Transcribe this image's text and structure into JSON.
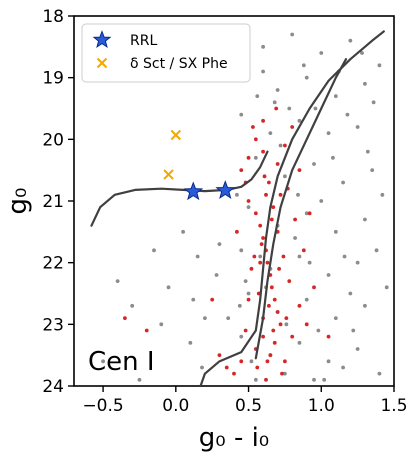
{
  "chart_data": {
    "type": "scatter",
    "title": "",
    "xlabel": "g₀ - i₀",
    "ylabel": "g₀",
    "xlim": [
      -0.7,
      1.5
    ],
    "ylim": [
      24,
      18
    ],
    "y_inverted": true,
    "grid": false,
    "legend_position": "top-left",
    "annotation": "Cen I",
    "x_ticks": [
      {
        "value": -0.5,
        "label": "−0.5"
      },
      {
        "value": 0.0,
        "label": "0.0"
      },
      {
        "value": 0.5,
        "label": "0.5"
      },
      {
        "value": 1.0,
        "label": "1.0"
      },
      {
        "value": 1.5,
        "label": "1.5"
      }
    ],
    "y_ticks": [
      {
        "value": 18,
        "label": "18"
      },
      {
        "value": 19,
        "label": "19"
      },
      {
        "value": 20,
        "label": "20"
      },
      {
        "value": 21,
        "label": "21"
      },
      {
        "value": 22,
        "label": "22"
      },
      {
        "value": 23,
        "label": "23"
      },
      {
        "value": 24,
        "label": "24"
      }
    ],
    "legend": [
      {
        "label": "RRL",
        "marker": "star",
        "color": "#2a5bd7"
      },
      {
        "label": "δ Sct / SX Phe",
        "marker": "x",
        "color": "#f2a900"
      }
    ],
    "series": [
      {
        "name": "RRL",
        "marker": "star",
        "color": "#2a5bd7",
        "points": [
          [
            0.12,
            20.85
          ],
          [
            0.34,
            20.83
          ]
        ]
      },
      {
        "name": "δ Sct / SX Phe",
        "marker": "x",
        "color": "#f2a900",
        "points": [
          [
            0.0,
            19.93
          ],
          [
            -0.05,
            20.57
          ]
        ]
      },
      {
        "name": "members",
        "marker": "dot",
        "color": "#d62728",
        "points": [
          [
            0.45,
            20.5
          ],
          [
            0.5,
            20.3
          ],
          [
            0.55,
            20.0
          ],
          [
            0.6,
            19.7
          ],
          [
            0.62,
            20.9
          ],
          [
            0.5,
            21.0
          ],
          [
            0.55,
            21.2
          ],
          [
            0.58,
            21.4
          ],
          [
            0.6,
            21.6
          ],
          [
            0.62,
            21.8
          ],
          [
            0.63,
            22.0
          ],
          [
            0.65,
            22.2
          ],
          [
            0.66,
            22.4
          ],
          [
            0.68,
            22.6
          ],
          [
            0.7,
            22.8
          ],
          [
            0.72,
            23.0
          ],
          [
            0.6,
            23.2
          ],
          [
            0.55,
            23.4
          ],
          [
            0.65,
            23.5
          ],
          [
            0.75,
            23.6
          ],
          [
            0.8,
            23.2
          ],
          [
            0.85,
            22.7
          ],
          [
            0.78,
            22.3
          ],
          [
            0.74,
            21.9
          ],
          [
            0.7,
            21.5
          ],
          [
            0.67,
            21.1
          ],
          [
            0.64,
            20.7
          ],
          [
            0.7,
            20.4
          ],
          [
            0.75,
            20.1
          ],
          [
            0.8,
            19.8
          ],
          [
            0.52,
            22.1
          ],
          [
            0.57,
            22.5
          ],
          [
            0.6,
            22.9
          ],
          [
            0.48,
            23.1
          ],
          [
            0.45,
            23.6
          ],
          [
            0.4,
            23.8
          ],
          [
            0.35,
            23.7
          ],
          [
            0.9,
            23.0
          ],
          [
            0.95,
            22.4
          ],
          [
            0.88,
            21.8
          ],
          [
            0.82,
            21.3
          ],
          [
            0.77,
            20.8
          ],
          [
            0.68,
            23.3
          ],
          [
            0.73,
            23.8
          ],
          [
            0.62,
            23.9
          ],
          [
            0.56,
            23.7
          ],
          [
            0.5,
            22.6
          ],
          [
            0.66,
            21.3
          ],
          [
            0.71,
            22.1
          ],
          [
            0.6,
            20.2
          ],
          [
            0.48,
            20.7
          ],
          [
            0.53,
            19.8
          ],
          [
            0.69,
            19.5
          ],
          [
            0.58,
            22.0
          ],
          [
            0.64,
            22.7
          ],
          [
            0.76,
            22.9
          ],
          [
            0.42,
            21.5
          ],
          [
            0.85,
            20.5
          ],
          [
            0.92,
            21.2
          ],
          [
            0.3,
            23.5
          ],
          [
            -0.2,
            23.1
          ],
          [
            -0.35,
            22.9
          ],
          [
            0.25,
            22.6
          ],
          [
            1.05,
            23.2
          ],
          [
            0.67,
            23.1
          ],
          [
            0.59,
            21.7
          ],
          [
            0.61,
            20.6
          ],
          [
            0.72,
            20.9
          ],
          [
            0.54,
            21.9
          ],
          [
            0.63,
            23.6
          ]
        ]
      },
      {
        "name": "field",
        "marker": "dot",
        "color": "#8c8c8c",
        "points": [
          [
            0.4,
            18.2
          ],
          [
            0.6,
            18.5
          ],
          [
            0.8,
            18.3
          ],
          [
            1.0,
            18.6
          ],
          [
            1.2,
            18.4
          ],
          [
            1.4,
            18.8
          ],
          [
            0.5,
            19.0
          ],
          [
            0.7,
            19.2
          ],
          [
            0.9,
            19.0
          ],
          [
            1.1,
            19.3
          ],
          [
            1.3,
            19.1
          ],
          [
            0.45,
            19.6
          ],
          [
            0.65,
            19.9
          ],
          [
            0.85,
            19.7
          ],
          [
            1.05,
            19.9
          ],
          [
            1.25,
            19.8
          ],
          [
            0.55,
            20.3
          ],
          [
            0.75,
            20.6
          ],
          [
            0.95,
            20.4
          ],
          [
            1.15,
            20.7
          ],
          [
            1.35,
            20.5
          ],
          [
            0.5,
            21.1
          ],
          [
            0.7,
            21.4
          ],
          [
            0.9,
            21.2
          ],
          [
            1.1,
            21.5
          ],
          [
            1.3,
            21.3
          ],
          [
            0.45,
            21.8
          ],
          [
            0.65,
            22.1
          ],
          [
            0.85,
            21.9
          ],
          [
            1.05,
            22.2
          ],
          [
            1.25,
            22.0
          ],
          [
            0.5,
            22.5
          ],
          [
            0.7,
            22.8
          ],
          [
            0.9,
            22.6
          ],
          [
            1.1,
            22.9
          ],
          [
            1.3,
            22.7
          ],
          [
            0.45,
            23.2
          ],
          [
            0.65,
            23.5
          ],
          [
            0.85,
            23.3
          ],
          [
            1.05,
            23.6
          ],
          [
            1.25,
            23.4
          ],
          [
            0.55,
            23.9
          ],
          [
            0.75,
            23.8
          ],
          [
            0.95,
            23.9
          ],
          [
            1.15,
            23.7
          ],
          [
            1.4,
            23.8
          ],
          [
            0.42,
            20.9
          ],
          [
            0.48,
            22.3
          ],
          [
            0.6,
            18.9
          ],
          [
            0.78,
            19.5
          ],
          [
            1.0,
            21.0
          ],
          [
            1.2,
            22.5
          ],
          [
            1.38,
            21.8
          ],
          [
            0.88,
            18.8
          ],
          [
            1.18,
            19.6
          ],
          [
            0.52,
            23.6
          ],
          [
            0.72,
            20.1
          ],
          [
            0.98,
            23.1
          ],
          [
            1.32,
            20.2
          ],
          [
            0.62,
            22.4
          ],
          [
            0.82,
            21.6
          ],
          [
            1.12,
            18.9
          ],
          [
            1.45,
            22.4
          ],
          [
            0.46,
            18.7
          ],
          [
            0.58,
            21.9
          ],
          [
            0.92,
            22.0
          ],
          [
            1.22,
            23.1
          ],
          [
            0.68,
            19.4
          ],
          [
            1.08,
            20.3
          ],
          [
            1.36,
            19.4
          ],
          [
            0.44,
            22.7
          ],
          [
            0.76,
            23.0
          ],
          [
            0.96,
            19.5
          ],
          [
            1.16,
            21.9
          ],
          [
            1.28,
            18.6
          ],
          [
            0.56,
            19.3
          ],
          [
            0.84,
            20.9
          ],
          [
            1.02,
            23.9
          ],
          [
            1.42,
            20.9
          ],
          [
            0.5,
            18.4
          ],
          [
            -0.1,
            23.0
          ],
          [
            -0.3,
            22.7
          ],
          [
            -0.5,
            23.6
          ],
          [
            0.1,
            23.3
          ],
          [
            0.2,
            22.9
          ],
          [
            -0.05,
            22.4
          ],
          [
            0.15,
            21.9
          ],
          [
            -0.25,
            23.9
          ],
          [
            0.05,
            21.5
          ],
          [
            0.28,
            22.2
          ],
          [
            -0.4,
            22.3
          ],
          [
            0.18,
            23.7
          ],
          [
            0.3,
            21.7
          ],
          [
            -0.15,
            21.8
          ],
          [
            0.12,
            22.6
          ],
          [
            0.36,
            22.9
          ]
        ]
      }
    ],
    "curves": [
      {
        "name": "isochrone-main",
        "color": "#404040",
        "points": [
          [
            0.17,
            24.0
          ],
          [
            0.2,
            23.8
          ],
          [
            0.3,
            23.6
          ],
          [
            0.45,
            23.45
          ],
          [
            0.55,
            23.1
          ],
          [
            0.58,
            22.6
          ],
          [
            0.6,
            22.1
          ],
          [
            0.62,
            21.6
          ],
          [
            0.65,
            21.1
          ],
          [
            0.7,
            20.6
          ],
          [
            0.8,
            20.0
          ],
          [
            0.92,
            19.5
          ],
          [
            1.05,
            19.05
          ],
          [
            1.2,
            18.7
          ],
          [
            1.35,
            18.4
          ],
          [
            1.43,
            18.25
          ]
        ]
      },
      {
        "name": "isochrone-secondary",
        "color": "#404040",
        "points": [
          [
            0.55,
            23.55
          ],
          [
            0.6,
            22.9
          ],
          [
            0.63,
            22.3
          ],
          [
            0.67,
            21.7
          ],
          [
            0.72,
            21.1
          ],
          [
            0.8,
            20.5
          ],
          [
            0.9,
            20.0
          ],
          [
            1.0,
            19.5
          ],
          [
            1.1,
            19.0
          ],
          [
            1.17,
            18.7
          ]
        ]
      },
      {
        "name": "horizontal-branch",
        "color": "#404040",
        "points": [
          [
            -0.58,
            21.4
          ],
          [
            -0.52,
            21.1
          ],
          [
            -0.42,
            20.9
          ],
          [
            -0.28,
            20.82
          ],
          [
            -0.1,
            20.8
          ],
          [
            0.05,
            20.82
          ],
          [
            0.2,
            20.84
          ],
          [
            0.35,
            20.82
          ],
          [
            0.45,
            20.77
          ],
          [
            0.52,
            20.65
          ],
          [
            0.58,
            20.45
          ],
          [
            0.63,
            20.2
          ]
        ]
      }
    ]
  }
}
